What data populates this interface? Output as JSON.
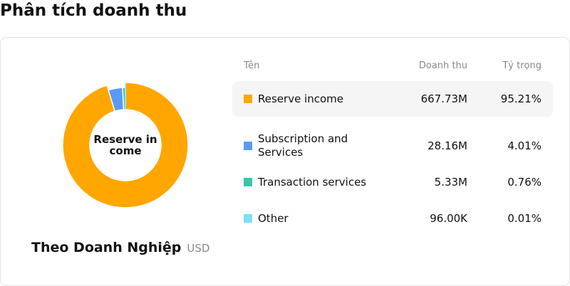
{
  "page": {
    "title": "Phân tích doanh thu"
  },
  "donut": {
    "center_label": "Reserve in come"
  },
  "footer": {
    "title": "Theo Doanh Nghiệp",
    "unit": "USD"
  },
  "table": {
    "headers": {
      "name": "Tên",
      "revenue": "Doanh thu",
      "share": "Tỷ trọng"
    }
  },
  "chart_data": {
    "type": "pie",
    "variant": "donut",
    "categories": [
      "Reserve income",
      "Subscription and Services",
      "Transaction services",
      "Other"
    ],
    "values": [
      667.73,
      28.16,
      5.33,
      0.096
    ],
    "value_labels": [
      "667.73M",
      "28.16M",
      "5.33M",
      "96.00K"
    ],
    "percentages": [
      95.21,
      4.01,
      0.76,
      0.01
    ],
    "percent_labels": [
      "95.21%",
      "4.01%",
      "0.76%",
      "0.01%"
    ],
    "colors": [
      "#ffa600",
      "#5b9bf5",
      "#34c7b0",
      "#7de0f5"
    ],
    "highlighted_index": 0
  }
}
